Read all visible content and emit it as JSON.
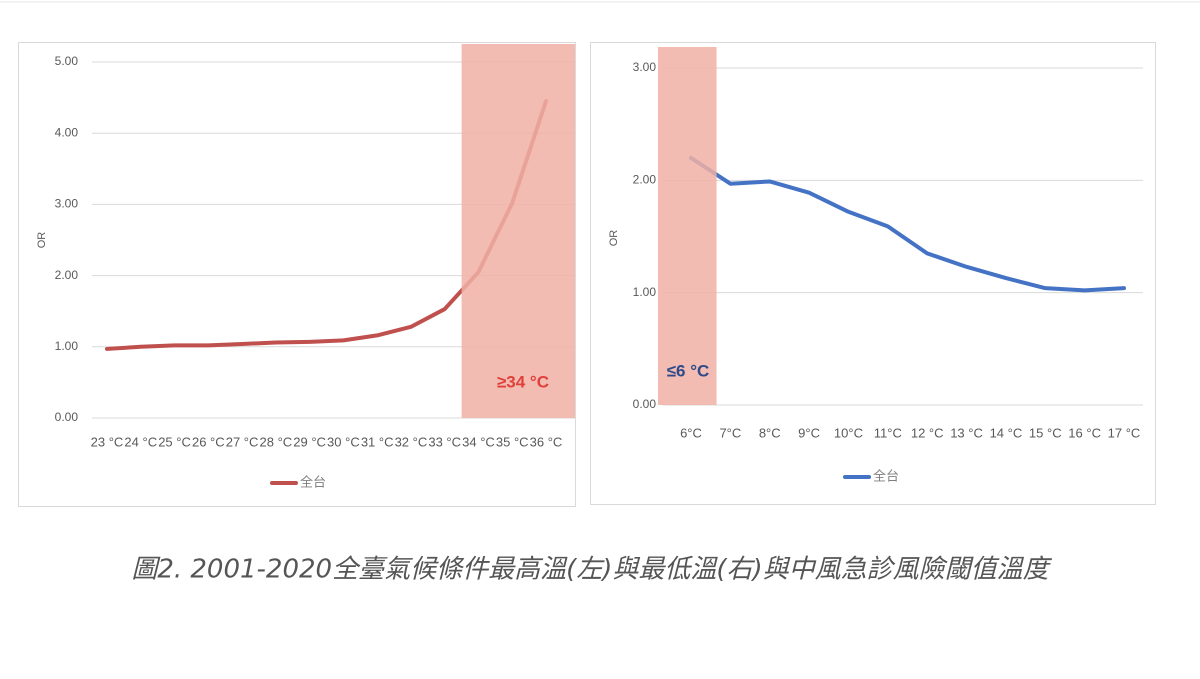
{
  "chart_data": [
    {
      "type": "line",
      "ylabel": "OR",
      "categories": [
        "23 °C",
        "24 °C",
        "25 °C",
        "26 °C",
        "27 °C",
        "28 °C",
        "29 °C",
        "30 °C",
        "31 °C",
        "32 °C",
        "33 °C",
        "34 °C",
        "35 °C",
        "36 °C"
      ],
      "series": [
        {
          "name": "全台",
          "color": "#c0504d",
          "values": [
            0.97,
            1.0,
            1.02,
            1.02,
            1.04,
            1.06,
            1.07,
            1.09,
            1.16,
            1.28,
            1.53,
            2.05,
            3.02,
            4.45
          ]
        }
      ],
      "ylim": [
        0,
        5
      ],
      "yticks": [
        {
          "value": 0,
          "label": "0.00"
        },
        {
          "value": 1,
          "label": "1.00"
        },
        {
          "value": 2,
          "label": "2.00"
        },
        {
          "value": 3,
          "label": "3.00"
        },
        {
          "value": 4,
          "label": "4.00"
        },
        {
          "value": 5,
          "label": "5.00"
        }
      ],
      "grid": true,
      "highlight": {
        "from_category": "34 °C",
        "text": "≥34 °C",
        "color": "#f0b0a4",
        "text_color": "#e0403a"
      }
    },
    {
      "type": "line",
      "ylabel": "OR",
      "categories": [
        "6°C",
        "7°C",
        "8°C",
        "9°C",
        "10°C",
        "11°C",
        "12 °C",
        "13 °C",
        "14 °C",
        "15 °C",
        "16 °C",
        "17 °C"
      ],
      "series": [
        {
          "name": "全台",
          "color": "#4472c4",
          "values": [
            2.2,
            1.97,
            1.99,
            1.89,
            1.72,
            1.59,
            1.35,
            1.23,
            1.13,
            1.04,
            1.02,
            1.04
          ]
        }
      ],
      "ylim": [
        0,
        3
      ],
      "yticks": [
        {
          "value": 0,
          "label": "0.00"
        },
        {
          "value": 1,
          "label": "1.00"
        },
        {
          "value": 2,
          "label": "2.00"
        },
        {
          "value": 3,
          "label": "3.00"
        }
      ],
      "grid": true,
      "highlight": {
        "from_category": "6°C",
        "text": "≤6 °C",
        "color": "#f0b0a4",
        "text_color": "#2f4a8a"
      }
    }
  ],
  "caption": "圖2. 2001-2020全臺氣候條件最高溫(左)與最低溫(右)與中風急診風險閾值溫度"
}
